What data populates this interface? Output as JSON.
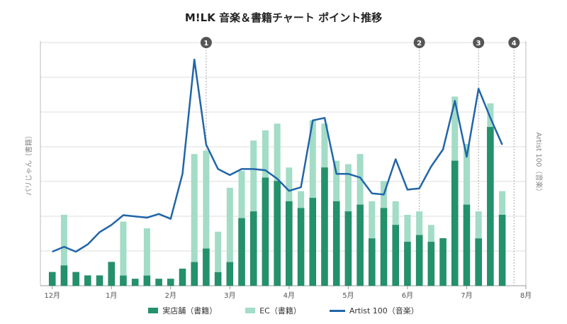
{
  "title": "M!LK 音楽＆書籍チャート ポイント推移",
  "chart_data": {
    "type": "bar",
    "title": "M!LK 音楽＆書籍チャート ポイント推移",
    "left_axis_label": "パリじゃん（書籍）",
    "right_axis_label": "Artist 100（音楽）",
    "x_tick_labels": [
      "12月",
      "1月",
      "2月",
      "3月",
      "4月",
      "5月",
      "6月",
      "7月",
      "8月"
    ],
    "x_tick_week_index": [
      1,
      6,
      11,
      16,
      21,
      26,
      31,
      36,
      41
    ],
    "markers": [
      {
        "label": "1",
        "week_index": 14
      },
      {
        "label": "2",
        "week_index": 32
      },
      {
        "label": "3",
        "week_index": 37
      },
      {
        "label": "4",
        "week_index": 40
      }
    ],
    "ylim": [
      0,
      36
    ],
    "right_ylim": [
      0,
      10
    ],
    "legend": [
      "実店舗（書籍）",
      "EC（書籍）",
      "Artist 100（音楽）"
    ],
    "colors": {
      "store": "#23926c",
      "ec": "#a3dcc7",
      "artist": "#2165a8",
      "grid": "#dedede"
    },
    "series": [
      {
        "name": "実店舗（書籍）",
        "kind": "stacked-bar",
        "values": [
          2.0,
          3.0,
          2.0,
          1.5,
          1.5,
          3.5,
          1.5,
          1.0,
          1.5,
          1.0,
          1.0,
          2.5,
          3.5,
          5.5,
          2.0,
          3.5,
          10.0,
          11.0,
          16.0,
          15.5,
          12.5,
          11.5,
          13.0,
          17.5,
          12.5,
          11.0,
          12.0,
          7.0,
          11.5,
          9.0,
          6.5,
          7.5,
          6.5,
          7.0,
          18.5,
          12.0,
          7.0,
          23.5,
          10.5
        ]
      },
      {
        "name": "EC（書籍）",
        "kind": "stacked-bar",
        "values": [
          0,
          7.5,
          0,
          0,
          0,
          0,
          8.0,
          0,
          7.0,
          0,
          0,
          0,
          16.0,
          14.5,
          6.0,
          11.0,
          7.0,
          10.5,
          7.0,
          8.5,
          5.0,
          2.5,
          11.5,
          6.5,
          6.0,
          7.0,
          7.5,
          5.5,
          4.0,
          3.5,
          4.0,
          3.5,
          2.5,
          0,
          9.5,
          9.0,
          4.0,
          3.5,
          3.5
        ]
      },
      {
        "name": "Artist 100（音楽）",
        "kind": "line",
        "values": [
          1.4,
          1.6,
          1.4,
          1.7,
          2.2,
          2.5,
          2.9,
          2.85,
          2.8,
          2.95,
          2.75,
          4.6,
          9.3,
          5.8,
          4.8,
          4.55,
          4.8,
          4.8,
          4.75,
          4.4,
          3.9,
          4.05,
          6.8,
          6.9,
          4.6,
          4.6,
          4.45,
          3.8,
          3.75,
          5.2,
          3.95,
          4.0,
          4.9,
          5.6,
          7.6,
          5.3,
          8.1,
          6.9,
          5.8
        ]
      }
    ],
    "x_min": 0,
    "x_max": 41,
    "grid": true
  }
}
